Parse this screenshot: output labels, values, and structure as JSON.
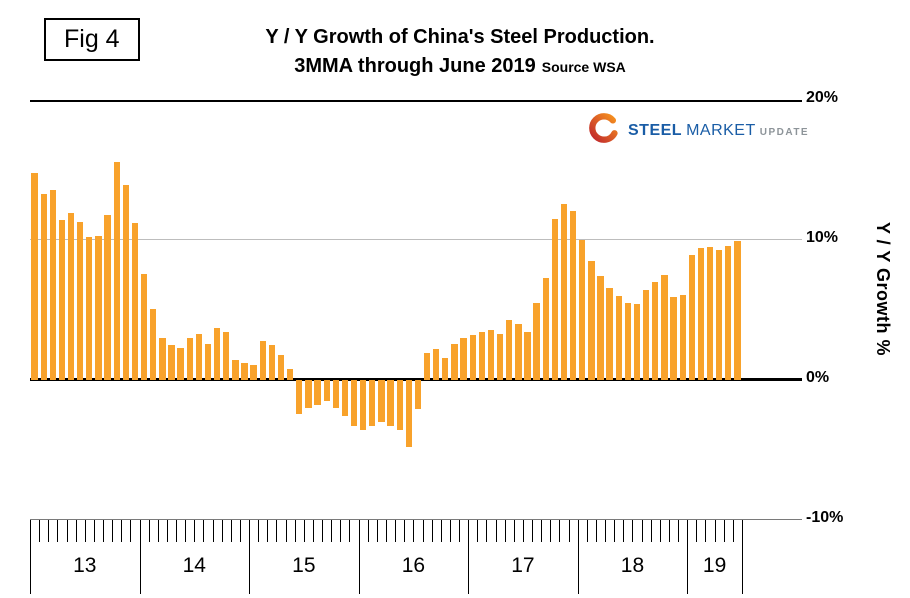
{
  "figure": {
    "label": "Fig 4"
  },
  "title": {
    "line1": "Y / Y Growth of China's Steel Production.",
    "line2": "3MMA through June 2019",
    "source": "Source WSA"
  },
  "logo": {
    "steel": "STEEL",
    "market": "MARKET",
    "update": "UPDATE"
  },
  "axis": {
    "y_title": "Y / Y Growth %",
    "y_ticks": [
      "20%",
      "10%",
      "0%",
      "-10%"
    ]
  },
  "chart_data": {
    "type": "bar",
    "title": "Y / Y Growth of China's Steel Production. 3MMA through June 2019",
    "source": "WSA",
    "unit": "percent YoY growth",
    "frequency": "monthly",
    "start_month": "2013-01",
    "end_month": "2019-06",
    "x_years": [
      "13",
      "14",
      "15",
      "16",
      "17",
      "18",
      "19"
    ],
    "months_per_year": [
      12,
      12,
      12,
      12,
      12,
      12,
      6
    ],
    "ylim": [
      -10,
      20
    ],
    "y_gridlines": [
      20,
      10,
      0,
      -10
    ],
    "bar_color": "#f8a22b",
    "values": [
      14.8,
      13.3,
      13.6,
      11.4,
      11.9,
      11.3,
      10.2,
      10.3,
      11.8,
      15.6,
      13.9,
      11.2,
      7.6,
      5.1,
      3.0,
      2.5,
      2.3,
      3.0,
      3.3,
      2.6,
      3.7,
      3.4,
      1.4,
      1.2,
      1.1,
      2.8,
      2.5,
      1.8,
      0.8,
      -2.4,
      -2.0,
      -1.8,
      -1.5,
      -2.0,
      -2.6,
      -3.3,
      -3.6,
      -3.3,
      -3.0,
      -3.3,
      -3.6,
      -4.8,
      -2.1,
      1.9,
      2.2,
      1.6,
      2.6,
      3.0,
      3.2,
      3.4,
      3.6,
      3.3,
      4.3,
      4.0,
      3.4,
      5.5,
      7.3,
      11.5,
      12.6,
      12.1,
      10.0,
      8.5,
      7.4,
      6.6,
      6.0,
      5.5,
      5.4,
      6.4,
      7.0,
      7.5,
      5.9,
      6.1,
      8.9,
      9.4,
      9.5,
      9.3,
      9.6,
      9.9
    ]
  }
}
